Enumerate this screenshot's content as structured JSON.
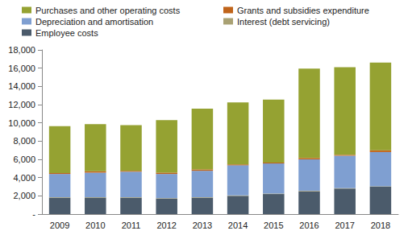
{
  "chart_data": {
    "type": "bar",
    "stacked": true,
    "legend": "top",
    "grid": false,
    "categories": [
      "2009",
      "2010",
      "2011",
      "2012",
      "2013",
      "2014",
      "2015",
      "2016",
      "2017",
      "2018"
    ],
    "series": [
      {
        "name": "Employee costs",
        "color": "#4b5b6b",
        "values": [
          1800,
          1800,
          1800,
          1700,
          1800,
          2000,
          2200,
          2500,
          2800,
          3000
        ]
      },
      {
        "name": "Interest (debt servicing)",
        "color": "#a9a173",
        "values": [
          50,
          50,
          50,
          50,
          50,
          50,
          50,
          50,
          50,
          50
        ]
      },
      {
        "name": "Depreciation and amortisation",
        "color": "#7f9fd1",
        "values": [
          2550,
          2700,
          2800,
          2650,
          2900,
          3300,
          3300,
          3450,
          3550,
          3750
        ]
      },
      {
        "name": "Grants and subsidies expenditure",
        "color": "#c0641a",
        "values": [
          100,
          150,
          100,
          150,
          150,
          100,
          100,
          150,
          100,
          200
        ]
      },
      {
        "name": "Purchases and other operating costs",
        "color": "#95a232",
        "values": [
          5150,
          5150,
          5000,
          5750,
          6650,
          6800,
          6900,
          9800,
          9600,
          9600
        ]
      }
    ],
    "ylim": [
      0,
      18000
    ],
    "yticks": [
      {
        "value": 0,
        "label": "-"
      },
      {
        "value": 2000,
        "label": "2,000"
      },
      {
        "value": 4000,
        "label": "4,000"
      },
      {
        "value": 6000,
        "label": "6,000"
      },
      {
        "value": 8000,
        "label": "8,000"
      },
      {
        "value": 10000,
        "label": "10,000"
      },
      {
        "value": 12000,
        "label": "12,000"
      },
      {
        "value": 14000,
        "label": "14,000"
      },
      {
        "value": 16000,
        "label": "16,000"
      },
      {
        "value": 18000,
        "label": "18,000"
      }
    ]
  }
}
